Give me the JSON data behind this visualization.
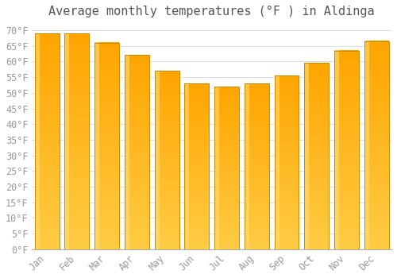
{
  "title": "Average monthly temperatures (°F ) in Aldinga",
  "months": [
    "Jan",
    "Feb",
    "Mar",
    "Apr",
    "May",
    "Jun",
    "Jul",
    "Aug",
    "Sep",
    "Oct",
    "Nov",
    "Dec"
  ],
  "values": [
    69.0,
    69.0,
    66.0,
    62.0,
    57.0,
    53.0,
    52.0,
    53.0,
    55.5,
    59.5,
    63.5,
    66.5
  ],
  "bar_color_bottom": "#FFCC44",
  "bar_color_top": "#FFA500",
  "bar_color_left_highlight": "#FFE080",
  "bar_edge_color": "#CC8800",
  "background_color": "#FFFFFF",
  "grid_color": "#DDDDDD",
  "text_color": "#999999",
  "ylim": [
    0,
    72
  ],
  "yticks": [
    0,
    5,
    10,
    15,
    20,
    25,
    30,
    35,
    40,
    45,
    50,
    55,
    60,
    65,
    70
  ],
  "title_fontsize": 11,
  "tick_fontsize": 8.5,
  "bar_width": 0.82
}
